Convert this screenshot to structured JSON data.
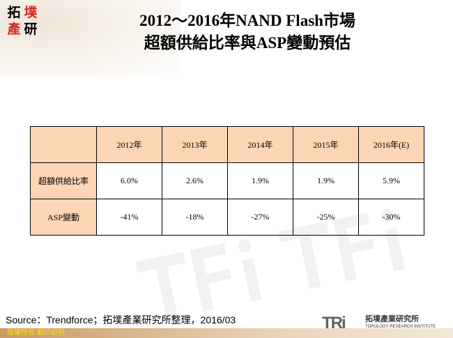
{
  "logo": {
    "chars": [
      "拓",
      "墣",
      "產",
      "研"
    ],
    "colors": [
      "#000000",
      "#d7261e",
      "#d7261e",
      "#000000"
    ]
  },
  "title": {
    "line1": "2012～2016年NAND Flash市場",
    "line2": "超額供給比率與ASP變動預估"
  },
  "table": {
    "headers": [
      "",
      "2012年",
      "2013年",
      "2014年",
      "2015年",
      "2016年(E)"
    ],
    "rows": [
      {
        "label": "超額供給比率",
        "values": [
          "6.0%",
          "2.6%",
          "1.9%",
          "1.9%",
          "5.9%"
        ]
      },
      {
        "label": "ASP變動",
        "values": [
          "-41%",
          "-18%",
          "-27%",
          "-25%",
          "-30%"
        ]
      }
    ],
    "header_color": "#fcd5b4"
  },
  "source": "Source：Trendforce；拓墣產業研究所整理，2016/03",
  "footer": "版權所有‧翻印必究",
  "brand": {
    "mark": "TRi",
    "name_cn": "拓墣產業研究所",
    "name_en": "TOPOLOGY RESEARCH INSTITUTE"
  }
}
